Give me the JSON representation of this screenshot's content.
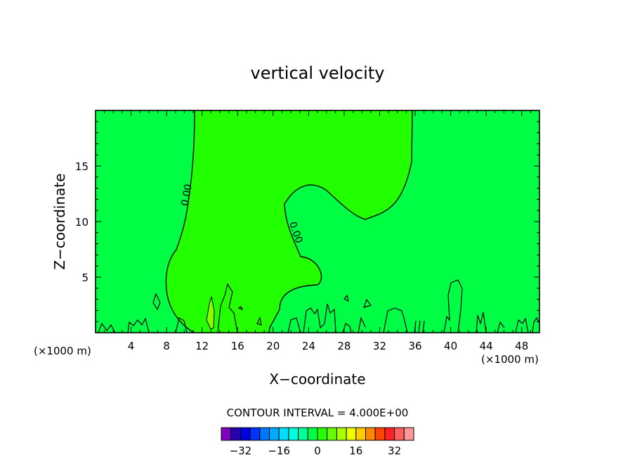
{
  "chart_data": {
    "type": "heatmap",
    "title": "vertical velocity",
    "xlabel": "X−coordinate",
    "ylabel": "Z−coordinate",
    "x_unit_left": "(×1000 m)",
    "x_unit_right": "(×1000 m)",
    "xlim": [
      0,
      50
    ],
    "ylim": [
      0,
      20
    ],
    "x_ticks": [
      4,
      8,
      12,
      16,
      20,
      24,
      28,
      32,
      36,
      40,
      44,
      48
    ],
    "y_ticks": [
      5,
      10,
      15
    ],
    "contour_labels": [
      "0.00",
      "0.00"
    ],
    "contour_interval_text": "CONTOUR INTERVAL = 4.000E+00",
    "background_color": "#00ff44",
    "positive_color": "#22ff00",
    "colorbar": {
      "tick_labels": [
        "−32",
        "−16",
        "0",
        "16",
        "32"
      ],
      "tick_values": [
        -32,
        -16,
        0,
        16,
        32
      ],
      "range": [
        -40,
        40
      ],
      "colors": [
        "#7f00bf",
        "#2a00b0",
        "#0000e0",
        "#0033ff",
        "#0077ff",
        "#00aaff",
        "#00ddff",
        "#00ffdd",
        "#00ff99",
        "#00ff44",
        "#22ff00",
        "#66ff00",
        "#aaff00",
        "#eeff00",
        "#ffcc00",
        "#ff8800",
        "#ff4400",
        "#ff2222",
        "#ff5f5f",
        "#ff9999"
      ]
    }
  }
}
